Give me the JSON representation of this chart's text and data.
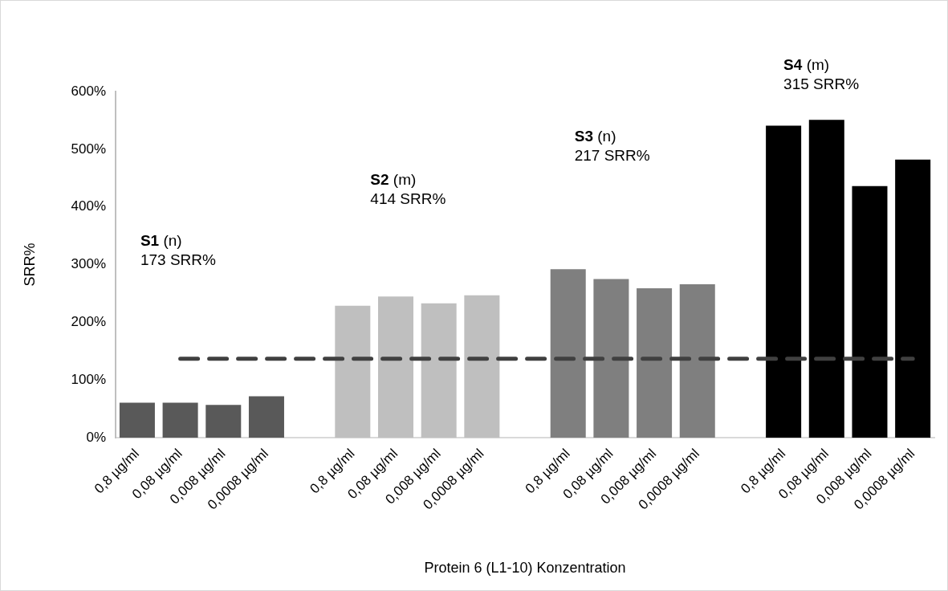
{
  "chart_data": {
    "type": "bar",
    "xlabel": "Protein 6 (L1-10) Konzentration",
    "ylabel": "SRR%",
    "categories": [
      "0,8 µg/ml",
      "0,08 µg/ml",
      "0,008 µg/ml",
      "0,0008 µg/ml",
      null,
      "0,8 µg/ml",
      "0,08 µg/ml",
      "0,008 µg/ml",
      "0,0008 µg/ml",
      null,
      "0,8 µg/ml",
      "0,08 µg/ml",
      "0,008 µg/ml",
      "0,0008 µg/ml",
      null,
      "0,8 µg/ml",
      "0,08 µg/ml",
      "0,008 µg/ml",
      "0,0008 µg/ml"
    ],
    "values": [
      61,
      61,
      57,
      72,
      null,
      229,
      245,
      233,
      247,
      null,
      292,
      275,
      259,
      266,
      null,
      541,
      551,
      436,
      482
    ],
    "colors": [
      "#595959",
      "#595959",
      "#595959",
      "#595959",
      "#ffffff",
      "#bfbfbf",
      "#bfbfbf",
      "#bfbfbf",
      "#bfbfbf",
      "#ffffff",
      "#7f7f7f",
      "#7f7f7f",
      "#7f7f7f",
      "#7f7f7f",
      "#ffffff",
      "#000000",
      "#000000",
      "#000000",
      "#000000"
    ],
    "ylim": [
      0,
      600
    ],
    "yticks": [
      {
        "value": 0,
        "label": "0%"
      },
      {
        "value": 100,
        "label": "100%"
      },
      {
        "value": 200,
        "label": "200%"
      },
      {
        "value": 300,
        "label": "300%"
      },
      {
        "value": 400,
        "label": "400%"
      },
      {
        "value": 500,
        "label": "500%"
      },
      {
        "value": 600,
        "label": "600%"
      }
    ],
    "ref_lines": [
      {
        "axis": "y",
        "value": 137,
        "color": "#404040",
        "line_style": "dashed"
      }
    ],
    "annotations": [
      "S1 (n)",
      "173 SRR%",
      "S2 (m)",
      "414 SRR%",
      "S3 (n)",
      "217 SRR%",
      "S4 (m)",
      "315 SRR%"
    ],
    "grid": false,
    "legend": false
  }
}
